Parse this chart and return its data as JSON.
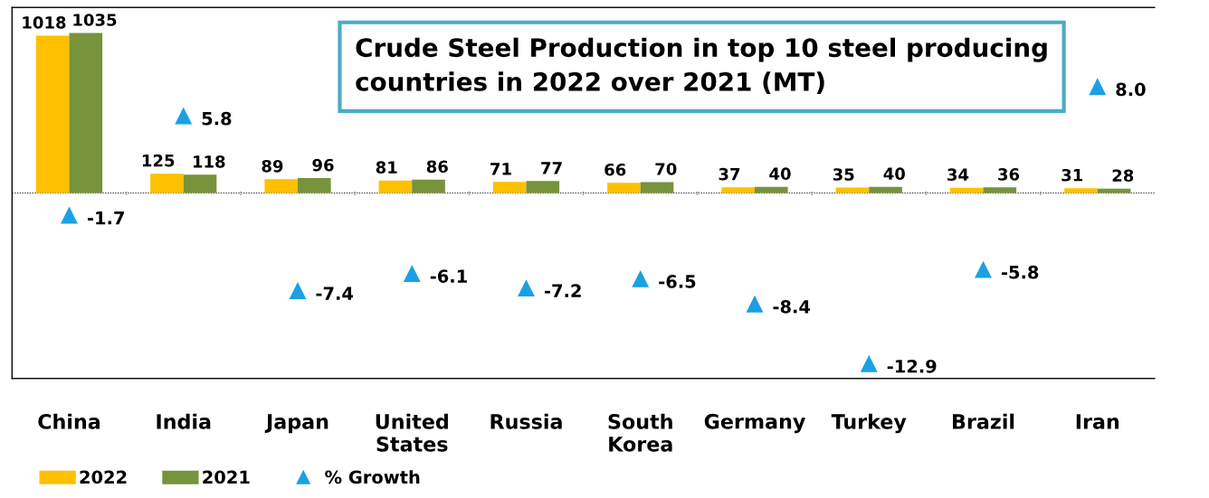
{
  "chart_data": {
    "type": "bar",
    "title": "Crude Steel Production in top 10 steel producing countries in 2022 over 2021 (MT)",
    "categories": [
      "China",
      "India",
      "Japan",
      "United States",
      "Russia",
      "South Korea",
      "Germany",
      "Turkey",
      "Brazil",
      "Iran"
    ],
    "series": [
      {
        "name": "2022",
        "color": "#ffc000",
        "values": [
          1018,
          125,
          89,
          81,
          71,
          66,
          37,
          35,
          34,
          31
        ]
      },
      {
        "name": "2021",
        "color": "#77933c",
        "values": [
          1035,
          118,
          96,
          86,
          77,
          70,
          40,
          40,
          36,
          28
        ]
      },
      {
        "name": "% Growth",
        "type": "scatter",
        "axis": "y2",
        "color": "#1ba1e2",
        "marker": "triangle",
        "values": [
          -1.7,
          5.8,
          -7.4,
          -6.1,
          -7.2,
          -6.5,
          -8.4,
          -12.9,
          -5.8,
          8.0
        ],
        "value_labels": [
          "-1.7",
          "5.8",
          "-7.4",
          "-6.1",
          "-7.2",
          "-6.5",
          "-8.4",
          "-12.9",
          "-5.8",
          "8.0"
        ]
      }
    ],
    "ref_lines": [
      {
        "axis": "y",
        "value": 0,
        "color": "#555555",
        "line_style": "dotted"
      }
    ],
    "ylim": [
      -1200,
      1200
    ],
    "y2lim": [
      -14,
      14
    ],
    "tick_labels": "x",
    "data_labels": true,
    "grid": false,
    "legend": "bottom left"
  }
}
